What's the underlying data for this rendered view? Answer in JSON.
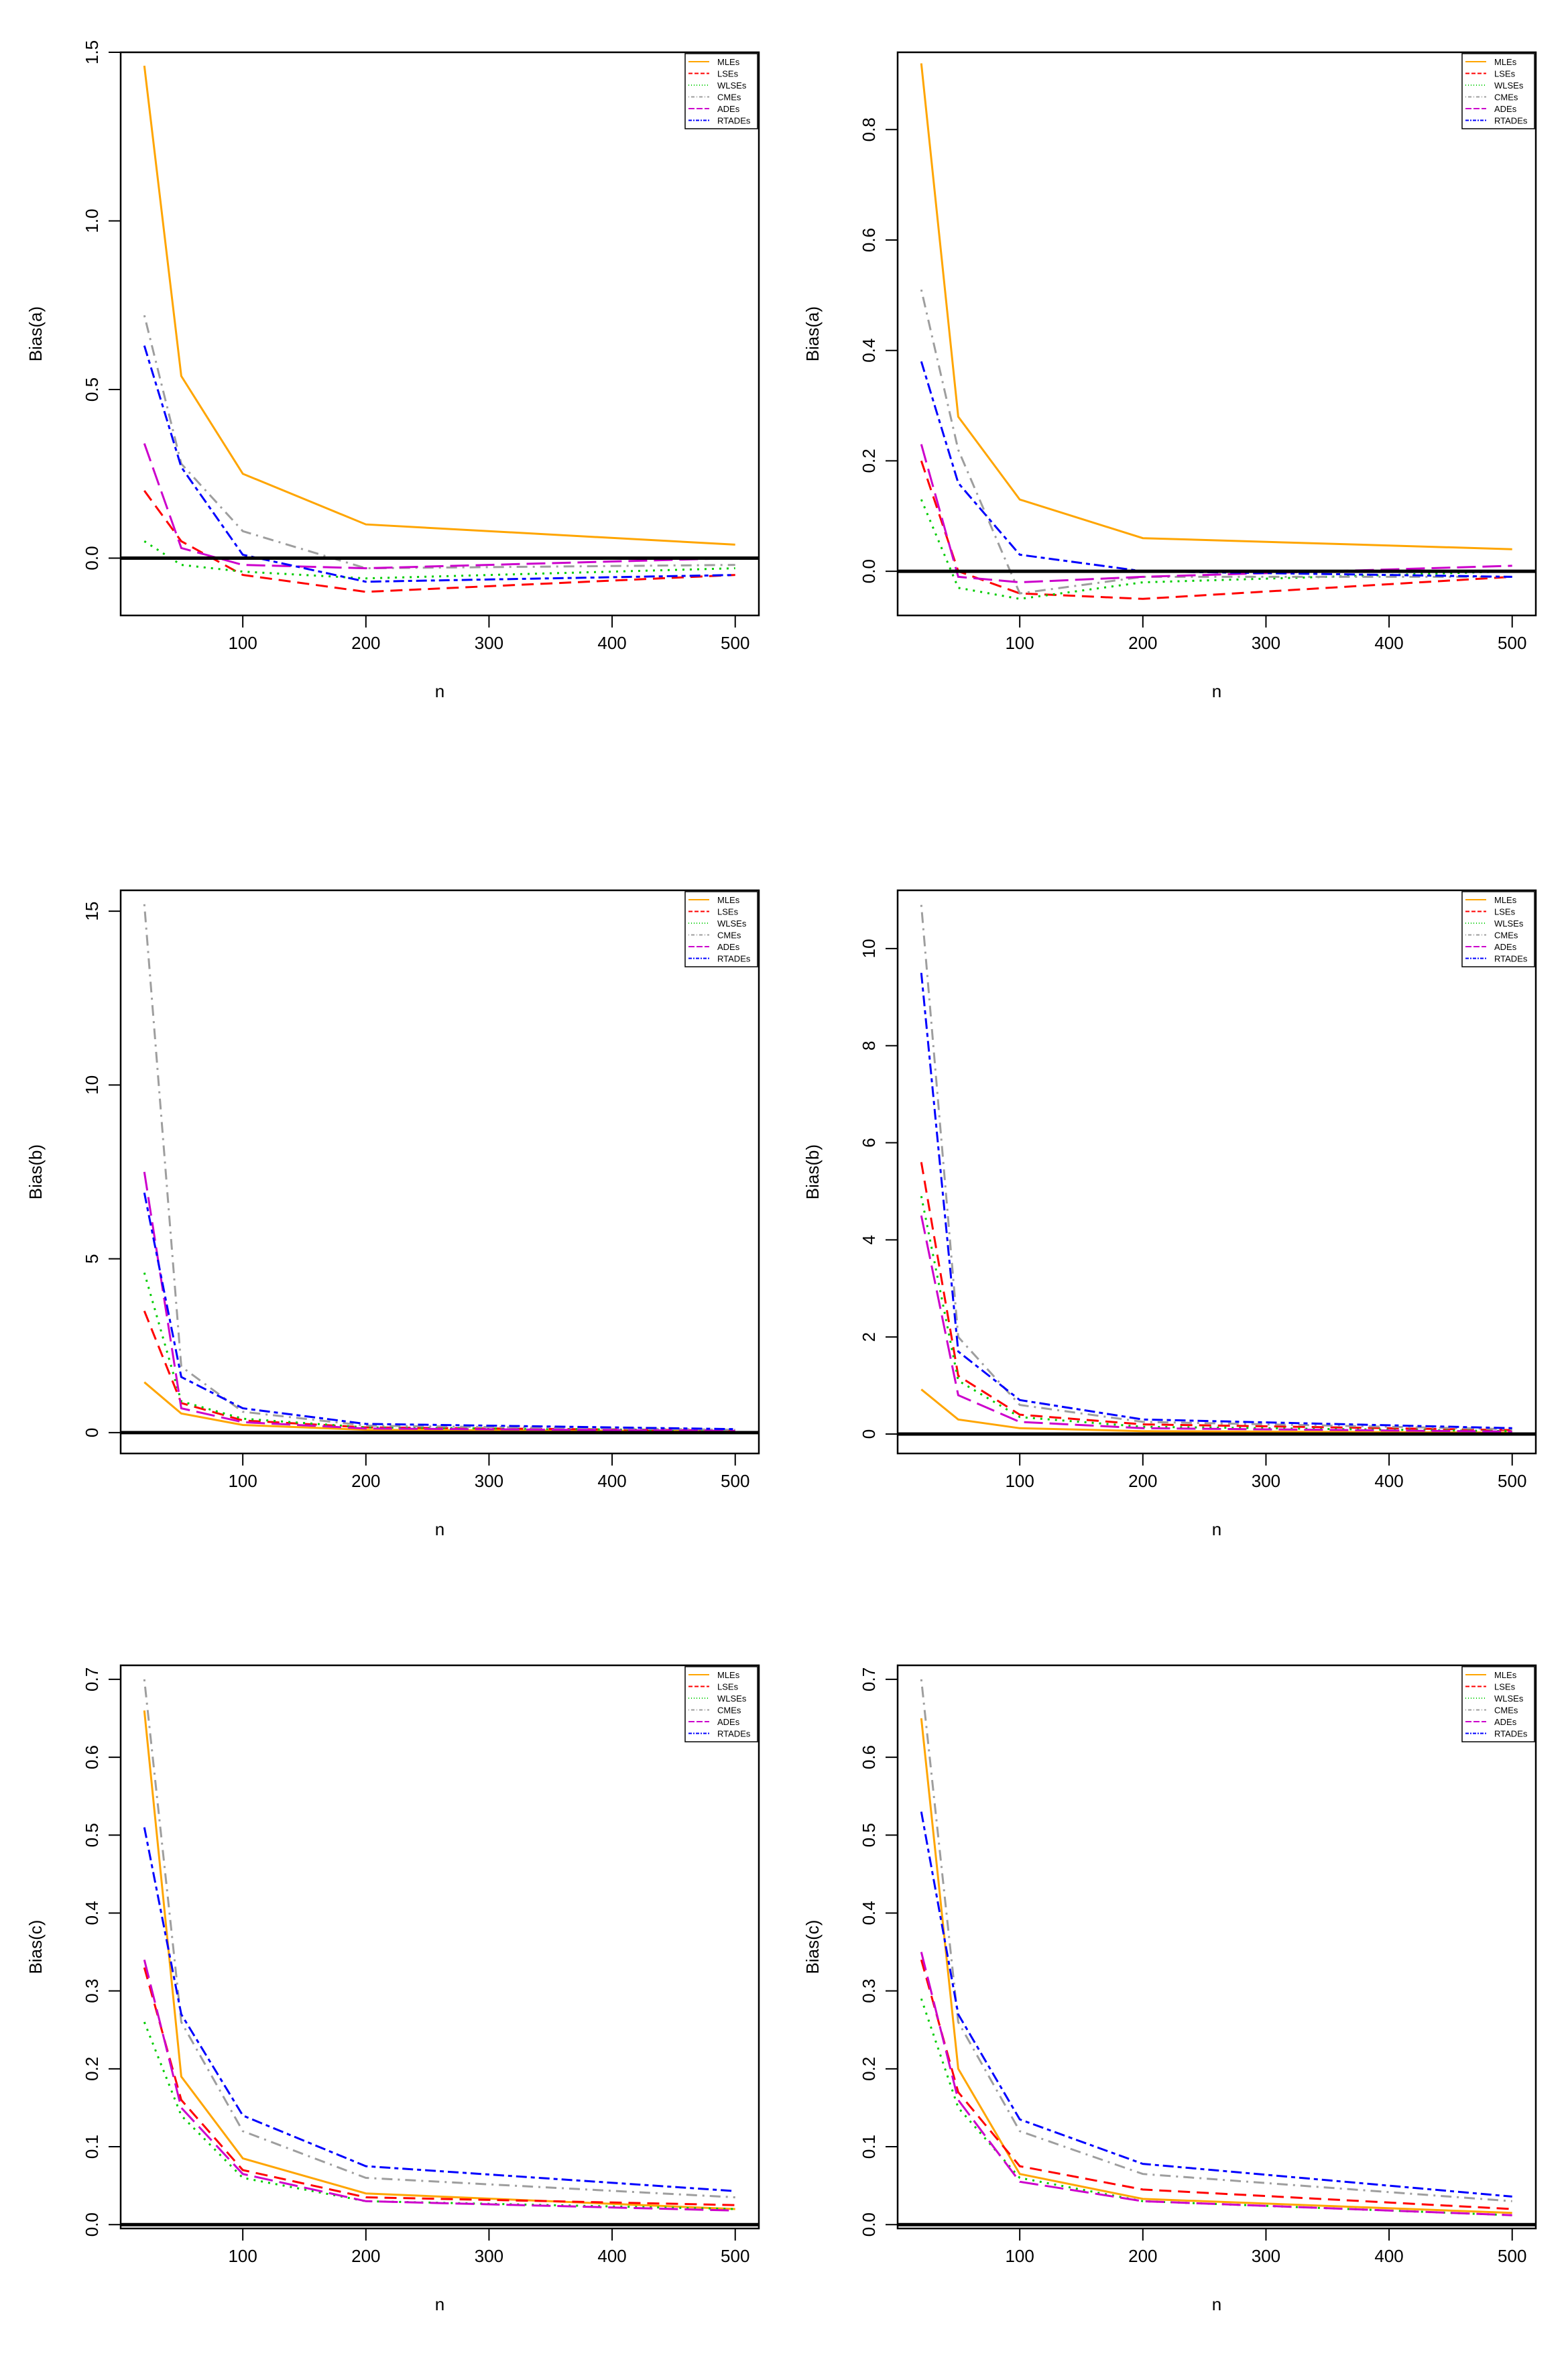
{
  "legend_labels": [
    "MLEs",
    "LSEs",
    "WLSEs",
    "CMEs",
    "ADEs",
    "RTADEs"
  ],
  "series_colors": [
    "#FFA500",
    "#FF0000",
    "#00CC00",
    "#9E9E9E",
    "#CC00CC",
    "#0000FF"
  ],
  "series_dash": [
    "solid",
    "dashed",
    "dotted",
    "dotdash",
    "longdash",
    "twodash"
  ],
  "chart_data": [
    {
      "type": "line",
      "panel": "top-left",
      "xlabel": "n",
      "ylabel": "Bias(a)",
      "x": [
        20,
        50,
        100,
        200,
        500
      ],
      "xlim": [
        20,
        500
      ],
      "xticks": [
        100,
        200,
        300,
        400,
        500
      ],
      "ylim": [
        -0.17,
        1.5
      ],
      "yticks": [
        0.0,
        0.5,
        1.0,
        1.5
      ],
      "ytick_labels": [
        "0.0",
        "0.5",
        "1.0",
        "1.5"
      ],
      "legend": "top-right",
      "zero_line": true,
      "series": [
        {
          "name": "MLEs",
          "values": [
            1.46,
            0.54,
            0.25,
            0.1,
            0.04
          ]
        },
        {
          "name": "LSEs",
          "values": [
            0.2,
            0.05,
            -0.05,
            -0.1,
            -0.05
          ]
        },
        {
          "name": "WLSEs",
          "values": [
            0.05,
            -0.02,
            -0.04,
            -0.06,
            -0.03
          ]
        },
        {
          "name": "CMEs",
          "values": [
            0.72,
            0.28,
            0.08,
            -0.03,
            -0.02
          ]
        },
        {
          "name": "ADEs",
          "values": [
            0.34,
            0.03,
            -0.02,
            -0.03,
            0.0
          ]
        },
        {
          "name": "RTADEs",
          "values": [
            0.63,
            0.27,
            0.01,
            -0.07,
            -0.05
          ]
        }
      ]
    },
    {
      "type": "line",
      "panel": "top-right",
      "xlabel": "n",
      "ylabel": "Bias(a)",
      "x": [
        20,
        50,
        100,
        200,
        500
      ],
      "xlim": [
        20,
        500
      ],
      "xticks": [
        100,
        200,
        300,
        400,
        500
      ],
      "ylim": [
        -0.08,
        0.94
      ],
      "yticks": [
        0.0,
        0.2,
        0.4,
        0.6,
        0.8
      ],
      "ytick_labels": [
        "0.0",
        "0.2",
        "0.4",
        "0.6",
        "0.8"
      ],
      "legend": "top-right",
      "zero_line": true,
      "series": [
        {
          "name": "MLEs",
          "values": [
            0.92,
            0.28,
            0.13,
            0.06,
            0.04
          ]
        },
        {
          "name": "LSEs",
          "values": [
            0.2,
            0.0,
            -0.04,
            -0.05,
            -0.01
          ]
        },
        {
          "name": "WLSEs",
          "values": [
            0.13,
            -0.03,
            -0.05,
            -0.02,
            0.0
          ]
        },
        {
          "name": "CMEs",
          "values": [
            0.51,
            0.22,
            -0.04,
            -0.01,
            -0.01
          ]
        },
        {
          "name": "ADEs",
          "values": [
            0.23,
            -0.01,
            -0.02,
            -0.01,
            0.01
          ]
        },
        {
          "name": "RTADEs",
          "values": [
            0.38,
            0.16,
            0.03,
            0.0,
            -0.01
          ]
        }
      ]
    },
    {
      "type": "line",
      "panel": "middle-left",
      "xlabel": "n",
      "ylabel": "Bias(b)",
      "x": [
        20,
        50,
        100,
        200,
        500
      ],
      "xlim": [
        20,
        500
      ],
      "xticks": [
        100,
        200,
        300,
        400,
        500
      ],
      "ylim": [
        -0.6,
        15.6
      ],
      "yticks": [
        0,
        5,
        10,
        15
      ],
      "ytick_labels": [
        "0",
        "5",
        "10",
        "15"
      ],
      "legend": "top-right",
      "zero_line": true,
      "series": [
        {
          "name": "MLEs",
          "values": [
            1.45,
            0.55,
            0.22,
            0.08,
            0.04
          ]
        },
        {
          "name": "LSEs",
          "values": [
            3.5,
            0.85,
            0.35,
            0.15,
            0.06
          ]
        },
        {
          "name": "WLSEs",
          "values": [
            4.6,
            0.9,
            0.4,
            0.15,
            0.06
          ]
        },
        {
          "name": "CMEs",
          "values": [
            15.2,
            1.9,
            0.6,
            0.2,
            0.08
          ]
        },
        {
          "name": "ADEs",
          "values": [
            7.5,
            0.7,
            0.3,
            0.12,
            0.05
          ]
        },
        {
          "name": "RTADEs",
          "values": [
            6.9,
            1.6,
            0.7,
            0.25,
            0.1
          ]
        }
      ]
    },
    {
      "type": "line",
      "panel": "middle-right",
      "xlabel": "n",
      "ylabel": "Bias(b)",
      "x": [
        20,
        50,
        100,
        200,
        500
      ],
      "xlim": [
        20,
        500
      ],
      "xticks": [
        100,
        200,
        300,
        400,
        500
      ],
      "ylim": [
        -0.4,
        11.2
      ],
      "yticks": [
        0,
        2,
        4,
        6,
        8,
        10
      ],
      "ytick_labels": [
        "0",
        "2",
        "4",
        "6",
        "8",
        "10"
      ],
      "legend": "top-right",
      "zero_line": true,
      "series": [
        {
          "name": "MLEs",
          "values": [
            0.92,
            0.3,
            0.12,
            0.06,
            0.03
          ]
        },
        {
          "name": "LSEs",
          "values": [
            5.6,
            1.2,
            0.4,
            0.2,
            0.08
          ]
        },
        {
          "name": "WLSEs",
          "values": [
            4.9,
            1.1,
            0.35,
            0.15,
            0.06
          ]
        },
        {
          "name": "CMEs",
          "values": [
            10.9,
            2.0,
            0.6,
            0.25,
            0.1
          ]
        },
        {
          "name": "ADEs",
          "values": [
            4.5,
            0.8,
            0.25,
            0.12,
            0.05
          ]
        },
        {
          "name": "RTADEs",
          "values": [
            9.5,
            1.7,
            0.7,
            0.3,
            0.12
          ]
        }
      ]
    },
    {
      "type": "line",
      "panel": "bottom-left",
      "xlabel": "n",
      "ylabel": "Bias(c)",
      "x": [
        20,
        50,
        100,
        200,
        500
      ],
      "xlim": [
        20,
        500
      ],
      "xticks": [
        100,
        200,
        300,
        400,
        500
      ],
      "ylim": [
        -0.005,
        0.718
      ],
      "yticks": [
        0.0,
        0.1,
        0.2,
        0.3,
        0.4,
        0.5,
        0.6,
        0.7
      ],
      "ytick_labels": [
        "0.0",
        "0.1",
        "0.2",
        "0.3",
        "0.4",
        "0.5",
        "0.6",
        "0.7"
      ],
      "legend": "top-right",
      "zero_line": true,
      "series": [
        {
          "name": "MLEs",
          "values": [
            0.66,
            0.19,
            0.085,
            0.04,
            0.02
          ]
        },
        {
          "name": "LSEs",
          "values": [
            0.33,
            0.16,
            0.07,
            0.035,
            0.025
          ]
        },
        {
          "name": "WLSEs",
          "values": [
            0.26,
            0.14,
            0.06,
            0.03,
            0.02
          ]
        },
        {
          "name": "CMEs",
          "values": [
            0.7,
            0.26,
            0.12,
            0.06,
            0.035
          ]
        },
        {
          "name": "ADEs",
          "values": [
            0.34,
            0.15,
            0.065,
            0.03,
            0.018
          ]
        },
        {
          "name": "RTADEs",
          "values": [
            0.51,
            0.27,
            0.14,
            0.075,
            0.043
          ]
        }
      ]
    },
    {
      "type": "line",
      "panel": "bottom-right",
      "xlabel": "n",
      "ylabel": "Bias(c)",
      "x": [
        20,
        50,
        100,
        200,
        500
      ],
      "xlim": [
        20,
        500
      ],
      "xticks": [
        100,
        200,
        300,
        400,
        500
      ],
      "ylim": [
        -0.005,
        0.718
      ],
      "yticks": [
        0.0,
        0.1,
        0.2,
        0.3,
        0.4,
        0.5,
        0.6,
        0.7
      ],
      "ytick_labels": [
        "0.0",
        "0.1",
        "0.2",
        "0.3",
        "0.4",
        "0.5",
        "0.6",
        "0.7"
      ],
      "legend": "top-right",
      "zero_line": true,
      "series": [
        {
          "name": "MLEs",
          "values": [
            0.65,
            0.2,
            0.065,
            0.033,
            0.015
          ]
        },
        {
          "name": "LSEs",
          "values": [
            0.34,
            0.17,
            0.075,
            0.045,
            0.02
          ]
        },
        {
          "name": "WLSEs",
          "values": [
            0.29,
            0.15,
            0.06,
            0.03,
            0.012
          ]
        },
        {
          "name": "CMEs",
          "values": [
            0.7,
            0.26,
            0.12,
            0.065,
            0.03
          ]
        },
        {
          "name": "ADEs",
          "values": [
            0.35,
            0.16,
            0.055,
            0.03,
            0.012
          ]
        },
        {
          "name": "RTADEs",
          "values": [
            0.53,
            0.27,
            0.135,
            0.078,
            0.036
          ]
        }
      ]
    }
  ]
}
